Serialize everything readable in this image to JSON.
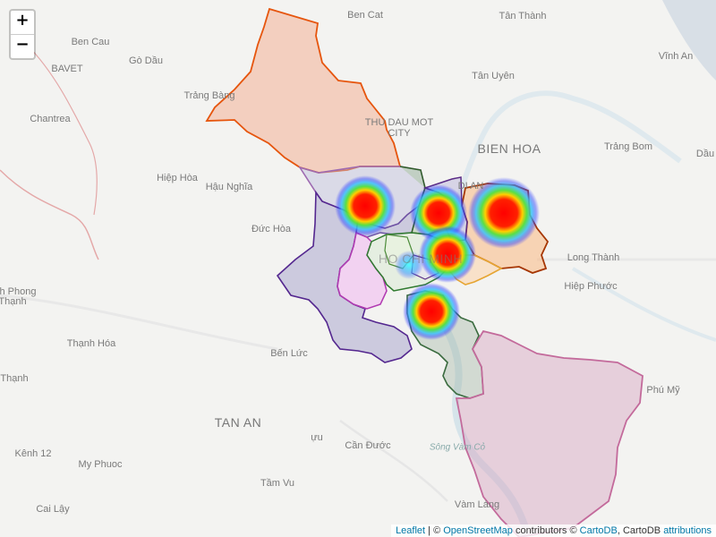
{
  "zoom": {
    "in_label": "+",
    "out_label": "−"
  },
  "places": [
    {
      "id": "ben-cat",
      "text": "Ben Cat",
      "cls": "city"
    },
    {
      "id": "tan-thanh",
      "text": "Tân Thành",
      "cls": ""
    },
    {
      "id": "ben-cau",
      "text": "Ben Cau",
      "cls": "city"
    },
    {
      "id": "go-dau",
      "text": "Gò Dầu",
      "cls": ""
    },
    {
      "id": "bavet",
      "text": "BAVET",
      "cls": "city"
    },
    {
      "id": "vinh-an",
      "text": "Vĩnh An",
      "cls": ""
    },
    {
      "id": "tan-uyen",
      "text": "Tân Uyên",
      "cls": ""
    },
    {
      "id": "trang-bang",
      "text": "Trảng Bàng",
      "cls": ""
    },
    {
      "id": "chantrea",
      "text": "Chantrea",
      "cls": ""
    },
    {
      "id": "thu-dau-mot",
      "text": "THU DAU MOT",
      "cls": "city"
    },
    {
      "id": "city",
      "text": "CITY",
      "cls": "city"
    },
    {
      "id": "bien-hoa",
      "text": "BIEN HOA",
      "cls": "big"
    },
    {
      "id": "trang-bom",
      "text": "Trảng Bom",
      "cls": ""
    },
    {
      "id": "dau",
      "text": "Dầu",
      "cls": ""
    },
    {
      "id": "hiep-hoa",
      "text": "Hiệp Hòa",
      "cls": ""
    },
    {
      "id": "hau-nghia",
      "text": "Hậu Nghĩa",
      "cls": ""
    },
    {
      "id": "di-an",
      "text": "DI AN",
      "cls": "city"
    },
    {
      "id": "duc-hoa",
      "text": "Đức Hòa",
      "cls": ""
    },
    {
      "id": "long-thanh",
      "text": "Long Thành",
      "cls": ""
    },
    {
      "id": "hiep-phuoc",
      "text": "Hiệp Phước",
      "cls": ""
    },
    {
      "id": "phong",
      "text": "h Phong",
      "cls": ""
    },
    {
      "id": "thanh",
      "text": "Thạnh",
      "cls": ""
    },
    {
      "id": "thanh-hoa",
      "text": "Thạnh Hóa",
      "cls": ""
    },
    {
      "id": "ben-luc",
      "text": "Bến Lức",
      "cls": ""
    },
    {
      "id": "thanh2",
      "text": "Thạnh",
      "cls": ""
    },
    {
      "id": "phu-my",
      "text": "Phú Mỹ",
      "cls": ""
    },
    {
      "id": "tan-an",
      "text": "TAN AN",
      "cls": "big"
    },
    {
      "id": "ru",
      "text": "ựu",
      "cls": ""
    },
    {
      "id": "can-duoc",
      "text": "Cần Đước",
      "cls": ""
    },
    {
      "id": "song-vam-co",
      "text": "Sông Vàm Cỏ",
      "cls": "water"
    },
    {
      "id": "kenh-12",
      "text": "Kênh 12",
      "cls": ""
    },
    {
      "id": "my-phuoc",
      "text": "My Phuoc",
      "cls": ""
    },
    {
      "id": "tam-vu",
      "text": "Tầm Vu",
      "cls": ""
    },
    {
      "id": "cai-lay",
      "text": "Cai Lậy",
      "cls": ""
    },
    {
      "id": "vam-lang",
      "text": "Vàm Láng",
      "cls": ""
    },
    {
      "id": "hcm",
      "text": "HO CHI MINH",
      "cls": "big"
    }
  ],
  "layers": {
    "regions": [
      {
        "id": "north",
        "fill": "#f4a582",
        "stroke": "#e6550d"
      },
      {
        "id": "cuchi-east",
        "fill": "#bcbddc",
        "stroke": "#756bb1"
      },
      {
        "id": "binhchanh",
        "fill": "#9e9ac8",
        "stroke": "#54278f"
      },
      {
        "id": "hocmon",
        "fill": "#9e9ac8",
        "stroke": "#6a51a3"
      },
      {
        "id": "thuduc",
        "fill": "#fdae6b",
        "stroke": "#a63603"
      },
      {
        "id": "q2",
        "fill": "#fdd0a2",
        "stroke": "#e6a532"
      },
      {
        "id": "nhabe",
        "fill": "#a1b4a4",
        "stroke": "#3a6b3f"
      },
      {
        "id": "cangio",
        "fill": "#d7a5c0",
        "stroke": "#c36a9b"
      },
      {
        "id": "tanphu",
        "fill": "#f1b6f1",
        "stroke": "#b13ab1"
      },
      {
        "id": "q12",
        "fill": "#a8c4a0",
        "stroke": "#2e5e28"
      },
      {
        "id": "govap",
        "fill": "#c0b9dd",
        "stroke": "#5a2b86"
      },
      {
        "id": "center",
        "fill": "#d9ead3",
        "stroke": "#2f7a2f"
      }
    ],
    "heat": [
      {
        "id": "hs-cuchi",
        "intensity": 0.9
      },
      {
        "id": "hs-q12",
        "intensity": 0.95
      },
      {
        "id": "hs-thuduc",
        "intensity": 1.0
      },
      {
        "id": "hs-binhthanh",
        "intensity": 0.95
      },
      {
        "id": "hs-q7",
        "intensity": 0.9
      }
    ]
  },
  "attribution": {
    "leaflet": "Leaflet",
    "sep": " | © ",
    "osm": "OpenStreetMap",
    "contrib": " contributors © ",
    "cartodb": "CartoDB",
    "mid": ", CartoDB ",
    "attributions": "attributions"
  }
}
